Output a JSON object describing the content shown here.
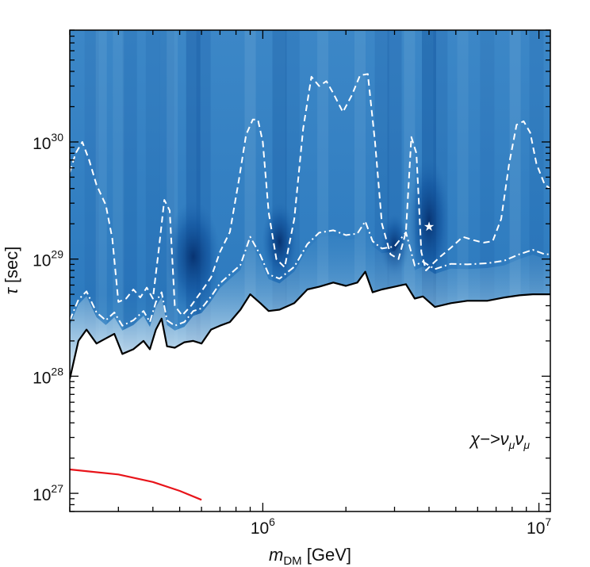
{
  "chart_data": {
    "type": "area",
    "title": "",
    "xlabel": {
      "var": "m",
      "sub": "DM",
      "unit": " [GeV]"
    },
    "ylabel": {
      "var": "τ",
      "unit": " [sec]"
    },
    "xscale": "log",
    "yscale": "log",
    "xlim": [
      200000,
      11000000
    ],
    "ylim": [
      7e+26,
      9e+30
    ],
    "x_ticks": [
      {
        "value": 1000000,
        "base": "10",
        "exp": "6"
      },
      {
        "value": 10000000,
        "base": "10",
        "exp": "7"
      }
    ],
    "y_ticks": [
      {
        "value": 1e+27,
        "base": "10",
        "exp": "27"
      },
      {
        "value": 1e+28,
        "base": "10",
        "exp": "28"
      },
      {
        "value": 1e+29,
        "base": "10",
        "exp": "29"
      },
      {
        "value": 1e+30,
        "base": "10",
        "exp": "30"
      }
    ],
    "annotation": {
      "text_main": "χ−>ν",
      "sub1": "μ",
      "mid": "ν",
      "sub2": "μ"
    },
    "colors": {
      "fill_dark": "#0b4f9c",
      "fill_mid": "#3a86c6",
      "fill_light": "#8dc3e2",
      "limit_line": "#000000",
      "red_line": "#e8141a",
      "contour": "#ffffff"
    },
    "best_fit_marker": {
      "x": 4000000,
      "y": 1.9e+29,
      "symbol": "★"
    },
    "series": [
      {
        "role": "lower-limit-black",
        "x": [
          200000,
          215000,
          230000,
          250000,
          270000,
          290000,
          310000,
          340000,
          370000,
          390000,
          410000,
          430000,
          450000,
          480000,
          520000,
          560000,
          600000,
          650000,
          700000,
          760000,
          830000,
          900000,
          980000,
          1050000,
          1150000,
          1300000,
          1450000,
          1600000,
          1800000,
          2000000,
          2200000,
          2350000,
          2500000,
          2700000,
          3000000,
          3300000,
          3550000,
          3800000,
          4200000,
          4800000,
          5500000,
          6500000,
          7500000,
          8500000,
          9500000,
          10500000,
          11000000
        ],
        "y": [
          9.5e+27,
          2e+28,
          2.5e+28,
          1.9e+28,
          2.1e+28,
          2.3e+28,
          1.55e+28,
          1.7e+28,
          2e+28,
          1.7e+28,
          2.5e+28,
          3.1e+28,
          1.8e+28,
          1.75e+28,
          1.95e+28,
          2e+28,
          1.9e+28,
          2.5e+28,
          2.7e+28,
          2.9e+28,
          3.7e+28,
          5e+28,
          4.2e+28,
          3.6e+28,
          3.7e+28,
          4.2e+28,
          5.5e+28,
          5.8e+28,
          6.3e+28,
          5.9e+28,
          6.3e+28,
          7.8e+28,
          5.2e+28,
          5.5e+28,
          5.8e+28,
          6.1e+28,
          4.6e+28,
          4.8e+28,
          3.9e+28,
          4.2e+28,
          4.4e+28,
          4.4e+28,
          4.7e+28,
          4.9e+28,
          5e+28,
          5e+28,
          5e+28
        ]
      },
      {
        "role": "dash-dot-white",
        "x": [
          200000,
          215000,
          230000,
          250000,
          270000,
          290000,
          310000,
          340000,
          370000,
          390000,
          410000,
          430000,
          450000,
          480000,
          520000,
          560000,
          600000,
          650000,
          700000,
          760000,
          830000,
          900000,
          980000,
          1050000,
          1150000,
          1300000,
          1450000,
          1600000,
          1800000,
          2000000,
          2200000,
          2350000,
          2500000,
          2700000,
          3000000,
          3300000,
          3550000,
          3800000,
          4200000,
          4800000,
          5500000,
          6500000,
          7500000,
          8500000,
          9500000,
          10500000,
          11000000
        ],
        "y": [
          3e+28,
          4.5e+28,
          5.3e+28,
          3.5e+28,
          3e+28,
          3.5e+28,
          2.7e+28,
          3e+28,
          3.6e+28,
          2.9e+28,
          4.3e+28,
          5.2e+28,
          3e+28,
          2.7e+28,
          2.9e+28,
          3.6e+28,
          3.8e+28,
          4.8e+28,
          6.2e+28,
          7.4e+28,
          8.9e+28,
          1.55e+29,
          1.08e+29,
          7.4e+28,
          6.8e+28,
          8.6e+28,
          1.34e+29,
          1.68e+29,
          1.76e+29,
          1.6e+29,
          1.65e+29,
          2.1e+29,
          1.42e+29,
          1.23e+29,
          1.28e+29,
          1.69e+29,
          8.8e+28,
          9.5e+28,
          8.2e+28,
          9.1e+28,
          9e+28,
          9.2e+28,
          9.7e+28,
          1.1e+29,
          1.2e+29,
          1.1e+29,
          1.1e+29
        ]
      },
      {
        "role": "dashed-white",
        "x": [
          200000,
          210000,
          222000,
          235000,
          250000,
          270000,
          285000,
          300000,
          320000,
          340000,
          360000,
          380000,
          400000,
          420000,
          440000,
          460000,
          480000,
          510000,
          550000,
          600000,
          650000,
          700000,
          760000,
          820000,
          870000,
          920000,
          960000,
          1000000,
          1050000,
          1120000,
          1200000,
          1300000,
          1400000,
          1500000,
          1600000,
          1700000,
          1800000,
          1950000,
          2100000,
          2250000,
          2400000,
          2550000,
          2700000,
          2900000,
          3100000,
          3300000,
          3450000,
          3600000,
          3750000,
          3900000,
          4100000,
          4400000,
          4800000,
          5300000,
          5800000,
          6300000,
          6800000,
          7300000,
          7800000,
          8300000,
          8800000,
          9300000,
          9800000,
          10500000,
          11000000
        ],
        "y": [
          5.5e+29,
          8e+29,
          1e+30,
          7e+29,
          4.3e+29,
          2.9e+29,
          1.5e+29,
          4.3e+28,
          4.6e+28,
          5.5e+28,
          4.7e+28,
          5.7e+28,
          4.6e+28,
          1.2e+29,
          3.2e+29,
          2.6e+29,
          4e+28,
          3.3e+28,
          4e+28,
          5.3e+28,
          7e+28,
          1.15e+29,
          1.7e+29,
          4.8e+29,
          1.15e+30,
          1.55e+30,
          1.55e+30,
          1e+30,
          2.5e+29,
          1e+29,
          8.5e+28,
          2.2e+29,
          1.3e+30,
          3.6e+30,
          3e+30,
          3.3e+30,
          2.6e+30,
          1.8e+30,
          2.5e+30,
          3.7e+30,
          3.8e+30,
          1e+30,
          2e+29,
          1.1e+29,
          1e+29,
          1.7e+29,
          1.1e+30,
          8e+29,
          1.15e+29,
          8e+28,
          9e+28,
          1.05e+29,
          1.25e+29,
          1.55e+29,
          1.45e+29,
          1.38e+29,
          1.42e+29,
          2.2e+29,
          6.5e+29,
          1.4e+30,
          1.5e+30,
          1.2e+30,
          6.5e+29,
          4.3e+29,
          4e+29
        ]
      },
      {
        "role": "reference-red",
        "x": [
          200000,
          300000,
          400000,
          500000,
          600000
        ],
        "y": [
          1.6e+27,
          1.45e+27,
          1.25e+27,
          1.05e+27,
          8.8e+26
        ]
      }
    ]
  }
}
